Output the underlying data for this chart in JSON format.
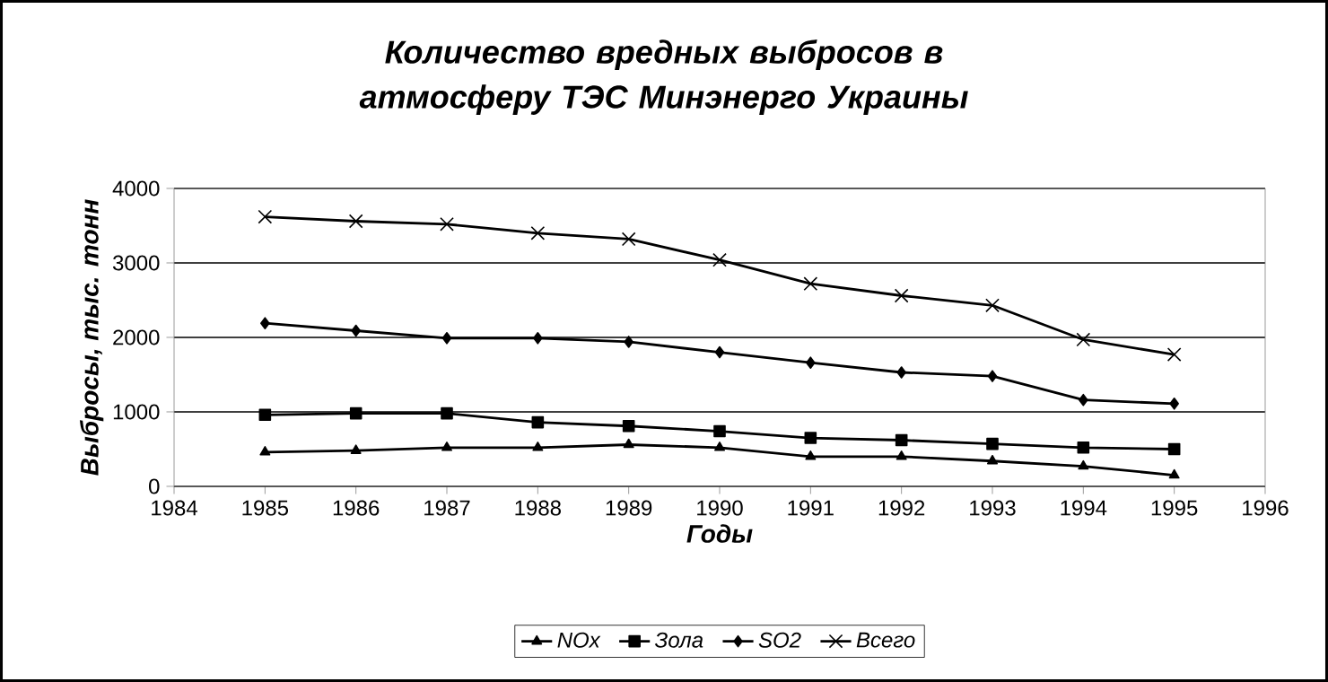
{
  "chart_data": {
    "type": "line",
    "title": "Количество вредных выбросов в атмосферу ТЭС Минэнерго Украины",
    "xlabel": "Годы",
    "ylabel": "Выбросы, тыс. тонн",
    "x": [
      1985,
      1986,
      1987,
      1988,
      1989,
      1990,
      1991,
      1992,
      1993,
      1994,
      1995
    ],
    "xlim": [
      1984,
      1996
    ],
    "xticks": [
      1984,
      1985,
      1986,
      1987,
      1988,
      1989,
      1990,
      1991,
      1992,
      1993,
      1994,
      1995,
      1996
    ],
    "ylim": [
      0,
      4000
    ],
    "yticks": [
      0,
      1000,
      2000,
      3000,
      4000
    ],
    "grid": "y",
    "legend": "bottom",
    "series": [
      {
        "name": "NOx",
        "color": "#000000",
        "marker": "triangle",
        "values": [
          460,
          480,
          520,
          520,
          560,
          520,
          400,
          400,
          340,
          270,
          150
        ]
      },
      {
        "name": "Зола",
        "color": "#000000",
        "marker": "square",
        "values": [
          960,
          980,
          980,
          860,
          810,
          740,
          650,
          620,
          570,
          520,
          500
        ]
      },
      {
        "name": "SO2",
        "color": "#000000",
        "marker": "diamond",
        "values": [
          2190,
          2090,
          1990,
          1990,
          1940,
          1800,
          1660,
          1530,
          1480,
          1160,
          1110
        ]
      },
      {
        "name": "Всего",
        "color": "#000000",
        "marker": "cross",
        "values": [
          3620,
          3560,
          3520,
          3400,
          3320,
          3040,
          2720,
          2560,
          2430,
          1970,
          1770
        ]
      }
    ]
  }
}
